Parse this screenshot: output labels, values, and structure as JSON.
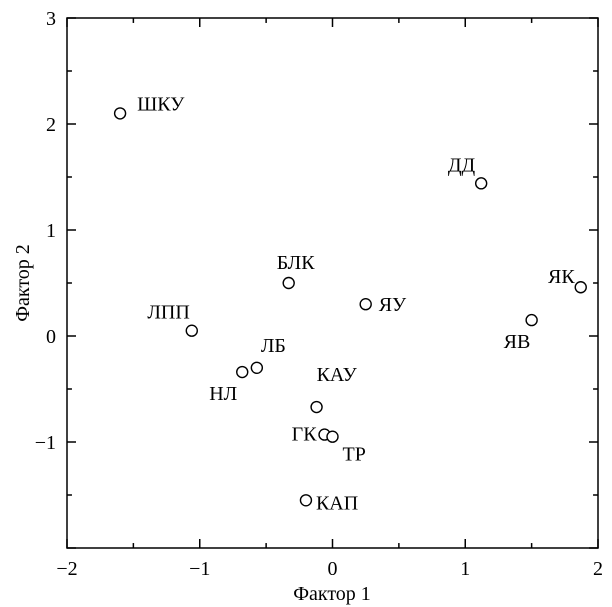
{
  "chart_data": {
    "type": "scatter",
    "title": "",
    "xlabel": "Фактор 1",
    "ylabel": "Фактор 2",
    "xlim": [
      -2,
      2
    ],
    "ylim": [
      -2,
      3
    ],
    "x_ticks": [
      "−2",
      "−1",
      "0",
      "1",
      "2"
    ],
    "y_ticks": [
      "−1",
      "0",
      "1",
      "2",
      "3"
    ],
    "grid": false,
    "legend": "none",
    "marker": "open-circle",
    "points": [
      {
        "label": "ШКУ",
        "x": -1.6,
        "y": 2.1
      },
      {
        "label": "ДД",
        "x": 1.12,
        "y": 1.44
      },
      {
        "label": "БЛК",
        "x": -0.33,
        "y": 0.5
      },
      {
        "label": "ЯК",
        "x": 1.87,
        "y": 0.46
      },
      {
        "label": "ЛПП",
        "x": -1.06,
        "y": 0.05
      },
      {
        "label": "ЯУ",
        "x": 0.25,
        "y": 0.3
      },
      {
        "label": "ЯВ",
        "x": 1.5,
        "y": 0.15
      },
      {
        "label": "ЛБ",
        "x": -0.57,
        "y": -0.3
      },
      {
        "label": "НЛ",
        "x": -0.68,
        "y": -0.34
      },
      {
        "label": "КАУ",
        "x": -0.12,
        "y": -0.67
      },
      {
        "label": "ГК",
        "x": -0.06,
        "y": -0.93
      },
      {
        "label": "ТР",
        "x": 0.0,
        "y": -0.95
      },
      {
        "label": "КАП",
        "x": -0.2,
        "y": -1.55
      }
    ]
  }
}
